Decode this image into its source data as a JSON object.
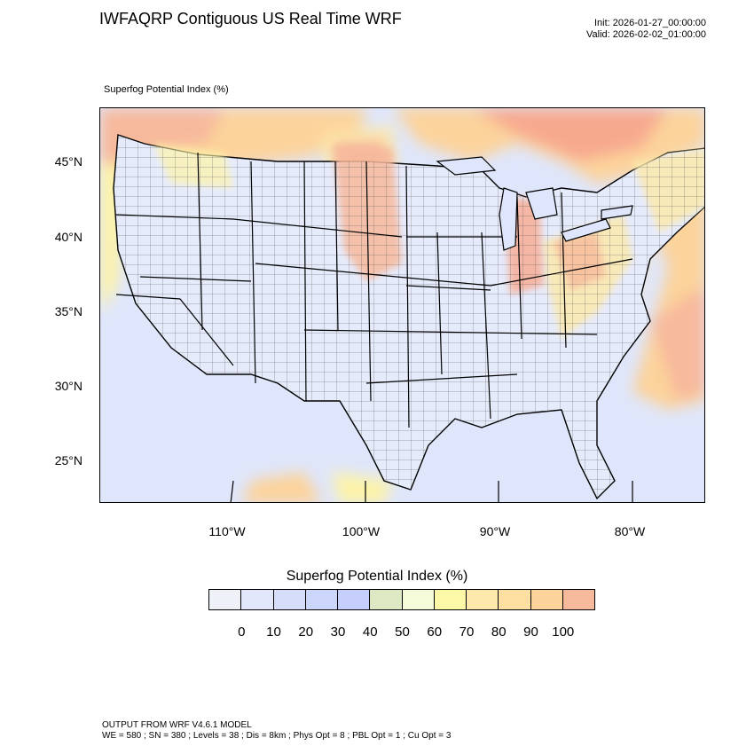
{
  "header": {
    "title": "IWFAQRP Contiguous US Real Time WRF",
    "init": "Init: 2026-01-27_00:00:00",
    "valid": "Valid: 2026-02-02_01:00:00"
  },
  "map": {
    "field_label": "Superfog Potential Index   (%)",
    "lat_labels": [
      "45°N",
      "40°N",
      "35°N",
      "30°N",
      "25°N"
    ],
    "lon_labels": [
      "110°W",
      "100°W",
      "90°W",
      "80°W"
    ],
    "colors": {
      "ocean_background": "#dfe6fb",
      "land_low": "#e6ebfc",
      "high_red": "#f7a98e",
      "high_orange": "#fcd39b",
      "high_yellow": "#fdf3a8"
    }
  },
  "colorbar": {
    "title": "Superfog Potential Index  (%)",
    "colors": [
      "#eef1f8",
      "#e2e7fb",
      "#d5ddfb",
      "#ccd6fb",
      "#c6cffc",
      "#dce9c3",
      "#f5fbd8",
      "#fdf7a8",
      "#fce9ab",
      "#fde0a1",
      "#fcd39b",
      "#f7b99c"
    ],
    "labels": [
      "0",
      "10",
      "20",
      "30",
      "40",
      "50",
      "60",
      "70",
      "80",
      "90",
      "100"
    ]
  },
  "footer": {
    "line1": "OUTPUT FROM WRF V4.6.1 MODEL",
    "line2": "WE = 580 ; SN = 380 ; Levels = 38 ; Dis = 8km ; Phys Opt = 8 ; PBL Opt = 1 ; Cu Opt = 3"
  }
}
